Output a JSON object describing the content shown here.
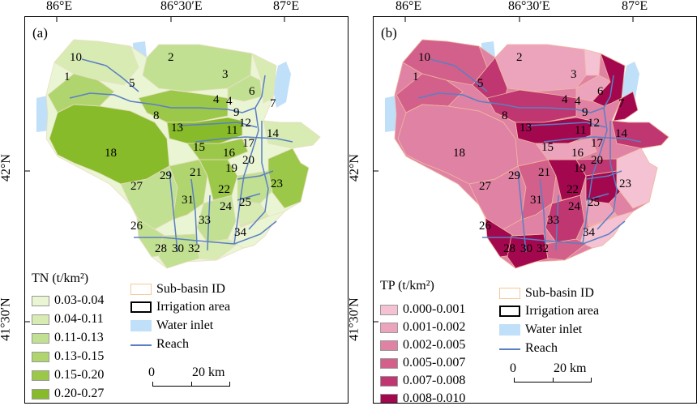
{
  "axes": {
    "top_labels": [
      "86°E",
      "86°30′E",
      "87°E"
    ],
    "left_labels": [
      "42°N",
      "41°30′N"
    ]
  },
  "panels": [
    {
      "id": "a",
      "label": "(a)",
      "legend_title": "TN (t/km²)",
      "classes": [
        {
          "range": "0.03-0.04",
          "color": "#eaf5d4"
        },
        {
          "range": "0.04-0.11",
          "color": "#d7ebb3"
        },
        {
          "range": "0.11-0.13",
          "color": "#c2e092"
        },
        {
          "range": "0.13-0.15",
          "color": "#b0d56f"
        },
        {
          "range": "0.15-0.20",
          "color": "#9cc84a"
        },
        {
          "range": "0.20-0.27",
          "color": "#88bb2a"
        }
      ]
    },
    {
      "id": "b",
      "label": "(b)",
      "legend_title": "TP (t/km²)",
      "classes": [
        {
          "range": "0.000-0.001",
          "color": "#f4c2d3"
        },
        {
          "range": "0.001-0.002",
          "color": "#eca4bd"
        },
        {
          "range": "0.002-0.005",
          "color": "#e082a4"
        },
        {
          "range": "0.005-0.007",
          "color": "#d2608a"
        },
        {
          "range": "0.007-0.008",
          "color": "#bf3670"
        },
        {
          "range": "0.008-0.010",
          "color": "#a3084f"
        }
      ]
    }
  ],
  "symbols": {
    "sub_basin": "Sub-basin ID",
    "irrigation": "Irrigation area",
    "water_inlet": "Water inlet",
    "reach": "Reach"
  },
  "scale": {
    "start": "0",
    "end": "20 km"
  },
  "colors": {
    "water": "#bfe0f8",
    "reach": "#5b7fc4"
  },
  "subbasin_ids": [
    "1",
    "2",
    "3",
    "4",
    "4",
    "5",
    "6",
    "7",
    "8",
    "9",
    "10",
    "11",
    "12",
    "13",
    "14",
    "15",
    "16",
    "17",
    "18",
    "19",
    "20",
    "21",
    "22",
    "23",
    "24",
    "25",
    "26",
    "27",
    "28",
    "29",
    "30",
    "31",
    "32",
    "33",
    "34"
  ]
}
